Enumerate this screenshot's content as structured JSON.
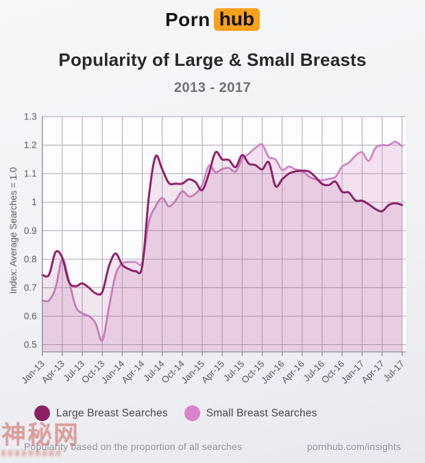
{
  "logo": {
    "text_plain": "Porn",
    "text_boxed": "hub",
    "box_color": "#f8a11c"
  },
  "header": {
    "title": "Popularity of Large & Small Breasts",
    "subtitle": "2013 - 2017"
  },
  "legend": [
    {
      "label": "Large Breast Searches",
      "color": "#8e2166"
    },
    {
      "label": "Small Breast Searches",
      "color": "#d884c9"
    }
  ],
  "footer": {
    "left": "Popularity based on the proportion of all searches",
    "right": "pornhub.com/insights"
  },
  "watermark": {
    "text": "神秘网"
  },
  "chart_data": {
    "type": "line",
    "title": "Popularity of Large & Small Breasts",
    "subtitle": "2013 - 2017",
    "ylabel": "Index: Average Searches = 1.0",
    "ylim": [
      0.475,
      1.3
    ],
    "y_ticks": [
      "1.3",
      "1.2",
      "1.1",
      "1",
      "0.9",
      "0.8",
      "0.7",
      "0.6",
      "0.5"
    ],
    "x_ticks": [
      "Jan-13",
      "Apr-13",
      "Jul-13",
      "Oct-13",
      "Jan-14",
      "Apr-14",
      "Jul-14",
      "Oct-14",
      "Jan-15",
      "Apr-15",
      "Jul-15",
      "Oct-15",
      "Jan-16",
      "Apr-16",
      "Jul-16",
      "Oct-16",
      "Jan-17",
      "Apr-17",
      "Jul-17"
    ],
    "points_per_tick_interval": 3,
    "grid": true,
    "legend_position": "bottom",
    "colors": {
      "grid": "#aaa4b3",
      "axis": "#8f8a99",
      "plot_bg": "#fdfcfe"
    },
    "series": [
      {
        "name": "Large Breast Searches",
        "color": "#8e2166",
        "fill": "rgba(142,33,102,0.10)",
        "line_width": 3,
        "values": [
          0.745,
          0.745,
          0.825,
          0.805,
          0.72,
          0.705,
          0.715,
          0.7,
          0.68,
          0.685,
          0.775,
          0.82,
          0.78,
          0.765,
          0.758,
          0.775,
          1.02,
          1.16,
          1.115,
          1.067,
          1.065,
          1.065,
          1.08,
          1.07,
          1.042,
          1.1,
          1.175,
          1.15,
          1.148,
          1.123,
          1.165,
          1.135,
          1.13,
          1.115,
          1.14,
          1.056,
          1.08,
          1.1,
          1.108,
          1.11,
          1.108,
          1.088,
          1.064,
          1.06,
          1.072,
          1.036,
          1.034,
          1.006,
          1.005,
          0.992,
          0.976,
          0.968,
          0.99,
          0.996,
          0.99
        ]
      },
      {
        "name": "Small Breast Searches",
        "color": "#d084c4",
        "fill": "rgba(208,132,196,0.22)",
        "line_width": 2.8,
        "values": [
          0.655,
          0.655,
          0.7,
          0.8,
          0.725,
          0.635,
          0.61,
          0.6,
          0.575,
          0.515,
          0.63,
          0.745,
          0.785,
          0.79,
          0.79,
          0.79,
          0.93,
          0.985,
          1.015,
          0.985,
          1.005,
          1.038,
          1.02,
          1.03,
          1.06,
          1.128,
          1.105,
          1.116,
          1.12,
          1.108,
          1.151,
          1.17,
          1.19,
          1.202,
          1.158,
          1.15,
          1.113,
          1.125,
          1.115,
          1.11,
          1.09,
          1.08,
          1.077,
          1.082,
          1.088,
          1.125,
          1.138,
          1.163,
          1.175,
          1.145,
          1.19,
          1.2,
          1.2,
          1.212,
          1.196
        ]
      }
    ]
  }
}
